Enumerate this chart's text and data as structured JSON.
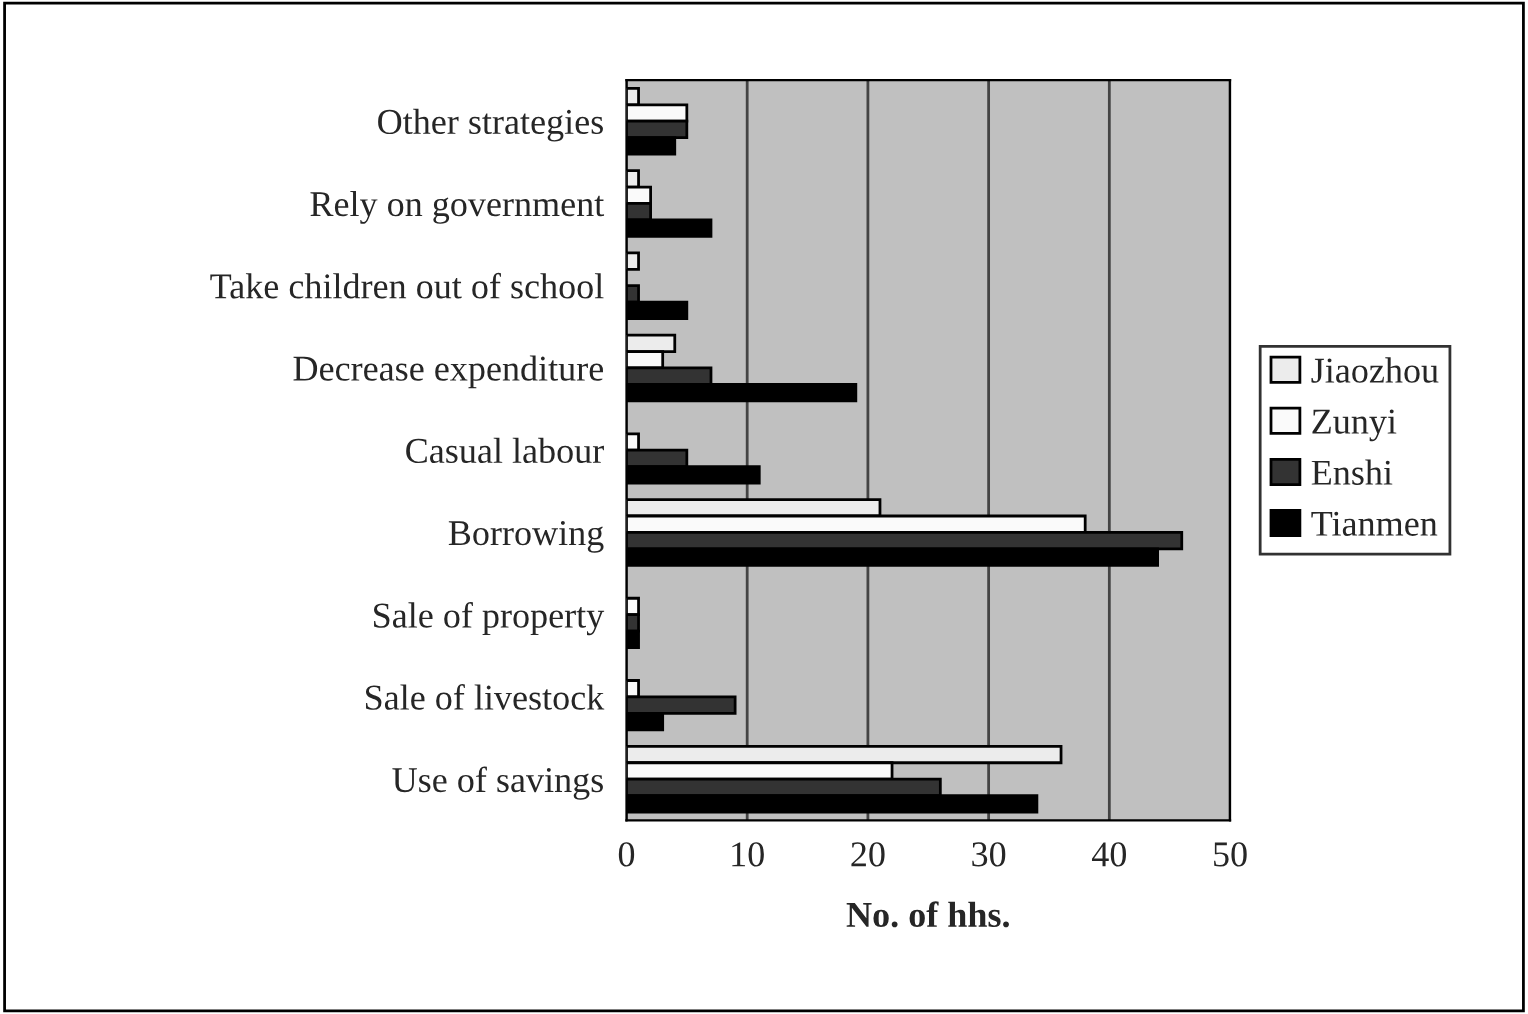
{
  "chart_data": {
    "type": "bar",
    "orientation": "horizontal",
    "xlabel": "No. of hhs.",
    "categories": [
      "Other strategies",
      "Rely on government",
      "Take children out of school",
      "Decrease expenditure",
      "Casual labour",
      "Borrowing",
      "Sale of property",
      "Sale of livestock",
      "Use of savings"
    ],
    "series": [
      {
        "name": "Jiaozhou",
        "color": "#ececec",
        "values": [
          1,
          1,
          1,
          4,
          0,
          21,
          0,
          0,
          36
        ]
      },
      {
        "name": "Zunyi",
        "color": "#fafafa",
        "values": [
          5,
          2,
          0,
          3,
          1,
          38,
          1,
          1,
          22
        ]
      },
      {
        "name": "Enshi",
        "color": "#333333",
        "values": [
          5,
          2,
          1,
          7,
          5,
          46,
          1,
          9,
          26
        ]
      },
      {
        "name": "Tianmen",
        "color": "#000000",
        "values": [
          4,
          7,
          5,
          19,
          11,
          44,
          1,
          3,
          34
        ]
      }
    ],
    "xlim": [
      0,
      50
    ],
    "xticks": [
      0,
      10,
      20,
      30,
      40,
      50
    ],
    "grid": "x",
    "legend": "right"
  }
}
